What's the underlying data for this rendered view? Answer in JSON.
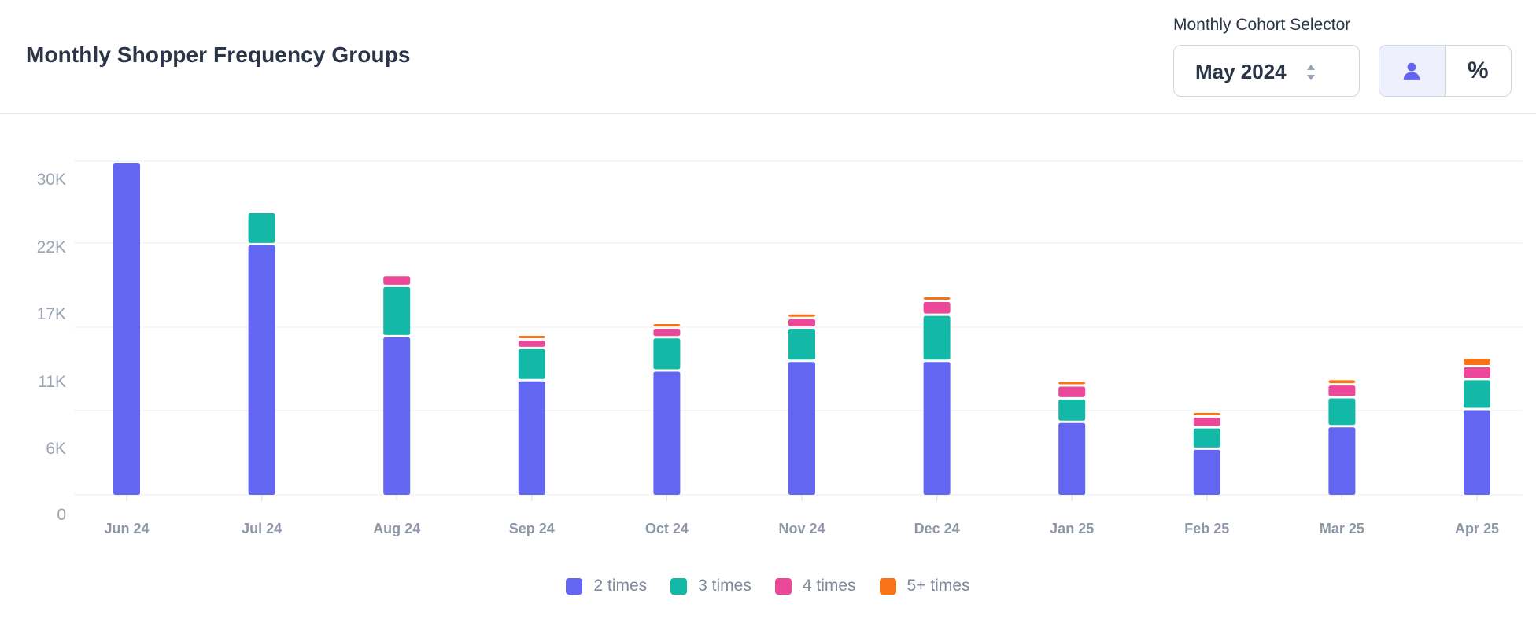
{
  "header": {
    "title": "Monthly Shopper Frequency Groups",
    "selector_label": "Monthly Cohort Selector",
    "selected_cohort": "May 2024",
    "toggle_count_icon": "person-icon",
    "toggle_percent_label": "%"
  },
  "colors": {
    "accent": "#6366f1",
    "series": [
      "#6366f1",
      "#14b8a6",
      "#ec4899",
      "#f97316"
    ]
  },
  "chart_data": {
    "type": "bar",
    "stacked": true,
    "title": "Monthly Shopper Frequency Groups",
    "xlabel": "",
    "ylabel": "",
    "ylim": [
      0,
      31000
    ],
    "y_tick_values": [
      0,
      6000,
      11000,
      17000,
      22000,
      30000
    ],
    "y_tick_labels": [
      "0",
      "6K",
      "11K",
      "17K",
      "22K",
      "30K"
    ],
    "categories": [
      "Jun 24",
      "Jul 24",
      "Aug 24",
      "Sep 24",
      "Oct 24",
      "Nov 24",
      "Dec 24",
      "Jan 25",
      "Feb 25",
      "Mar 25",
      "Apr 25"
    ],
    "series": [
      {
        "name": "2 times",
        "color": "#6366f1",
        "values": [
          31000,
          23300,
          14700,
          10600,
          11500,
          12400,
          12400,
          6700,
          4200,
          6300,
          7900
        ]
      },
      {
        "name": "3 times",
        "color": "#14b8a6",
        "values": [
          0,
          3000,
          4700,
          3000,
          3100,
          3100,
          4300,
          2200,
          2000,
          2700,
          2800
        ]
      },
      {
        "name": "4 times",
        "color": "#ec4899",
        "values": [
          0,
          0,
          1000,
          800,
          900,
          900,
          1300,
          1200,
          1000,
          1200,
          1200
        ]
      },
      {
        "name": "5+ times",
        "color": "#f97316",
        "values": [
          0,
          0,
          0,
          200,
          200,
          200,
          200,
          200,
          200,
          500,
          800
        ]
      }
    ],
    "grid": true,
    "legend_position": "bottom-center"
  }
}
